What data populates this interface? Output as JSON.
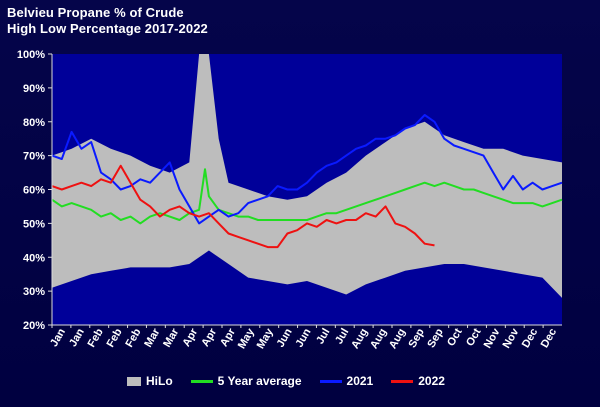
{
  "chart_data": {
    "type": "line",
    "title": "Belvieu Propane % of Crude",
    "subtitle": "High Low Percentage 2017-2022",
    "ylim": [
      20,
      100
    ],
    "yticks": [
      "20%",
      "30%",
      "40%",
      "50%",
      "60%",
      "70%",
      "80%",
      "90%",
      "100%"
    ],
    "x_labels": [
      "Jan",
      "Jan",
      "Feb",
      "Feb",
      "Feb",
      "Mar",
      "Mar",
      "Apr",
      "Apr",
      "Apr",
      "May",
      "May",
      "Jun",
      "Jun",
      "Jul",
      "Jul",
      "Aug",
      "Aug",
      "Aug",
      "Sep",
      "Sep",
      "Oct",
      "Oct",
      "Nov",
      "Nov",
      "Dec",
      "Dec"
    ],
    "x_range": [
      0,
      52
    ],
    "hilo": {
      "name": "HiLo",
      "color": "#bdbdbd",
      "x": [
        0,
        2,
        4,
        6,
        8,
        10,
        12,
        14,
        15,
        16,
        17,
        18,
        20,
        22,
        24,
        26,
        28,
        30,
        32,
        34,
        36,
        38,
        40,
        42,
        44,
        46,
        48,
        50,
        52
      ],
      "high": [
        70,
        72,
        75,
        72,
        70,
        67,
        65,
        68,
        100,
        100,
        75,
        62,
        60,
        58,
        57,
        58,
        62,
        65,
        70,
        74,
        78,
        80,
        76,
        74,
        72,
        72,
        70,
        69,
        68
      ],
      "low": [
        31,
        33,
        35,
        36,
        37,
        37,
        37,
        38,
        40,
        42,
        40,
        38,
        34,
        33,
        32,
        33,
        31,
        29,
        32,
        34,
        36,
        37,
        38,
        38,
        37,
        36,
        35,
        34,
        28
      ]
    },
    "series": [
      {
        "name": "5 Year average",
        "color": "#22dd22",
        "x": [
          0,
          1,
          2,
          3,
          4,
          5,
          6,
          7,
          8,
          9,
          10,
          11,
          12,
          13,
          14,
          15,
          15.6,
          16,
          17,
          18,
          19,
          20,
          21,
          22,
          23,
          24,
          25,
          26,
          27,
          28,
          29,
          30,
          31,
          32,
          33,
          34,
          35,
          36,
          37,
          38,
          39,
          40,
          41,
          42,
          43,
          44,
          45,
          46,
          47,
          48,
          49,
          50,
          51,
          52
        ],
        "values": [
          57,
          55,
          56,
          55,
          54,
          52,
          53,
          51,
          52,
          50,
          52,
          53,
          52,
          51,
          53,
          54,
          66,
          58,
          54,
          53,
          52,
          52,
          51,
          51,
          51,
          51,
          51,
          51,
          52,
          53,
          53,
          54,
          55,
          56,
          57,
          58,
          59,
          60,
          61,
          62,
          61,
          62,
          61,
          60,
          60,
          59,
          58,
          57,
          56,
          56,
          56,
          55,
          56,
          57
        ]
      },
      {
        "name": "2021",
        "color": "#0a1aff",
        "x": [
          0,
          1,
          2,
          3,
          4,
          5,
          6,
          7,
          8,
          9,
          10,
          11,
          12,
          13,
          14,
          15,
          16,
          17,
          18,
          19,
          20,
          21,
          22,
          23,
          24,
          25,
          26,
          27,
          28,
          29,
          30,
          31,
          32,
          33,
          34,
          35,
          36,
          37,
          38,
          39,
          40,
          41,
          42,
          43,
          44,
          45,
          46,
          47,
          48,
          49,
          50,
          51,
          52
        ],
        "values": [
          70,
          69,
          77,
          72,
          74,
          65,
          63,
          60,
          61,
          63,
          62,
          65,
          68,
          60,
          55,
          50,
          52,
          54,
          52,
          53,
          56,
          57,
          58,
          61,
          60,
          60,
          62,
          65,
          67,
          68,
          70,
          72,
          73,
          75,
          75,
          76,
          78,
          79,
          82,
          80,
          75,
          73,
          72,
          71,
          70,
          65,
          60,
          64,
          60,
          62,
          60,
          61,
          62
        ]
      },
      {
        "name": "2022",
        "color": "#ee1111",
        "x": [
          0,
          1,
          2,
          3,
          4,
          5,
          6,
          7,
          8,
          9,
          10,
          11,
          12,
          13,
          14,
          15,
          16,
          17,
          18,
          19,
          20,
          21,
          22,
          23,
          24,
          25,
          26,
          27,
          28,
          29,
          30,
          31,
          32,
          33,
          34,
          35,
          36,
          37,
          38,
          39
        ],
        "values": [
          61,
          60,
          61,
          62,
          61,
          63,
          62,
          67,
          62,
          57,
          55,
          52,
          54,
          55,
          53,
          52,
          53,
          50,
          47,
          46,
          45,
          44,
          43,
          43,
          47,
          48,
          50,
          49,
          51,
          50,
          51,
          51,
          53,
          52,
          55,
          50,
          49,
          47,
          44,
          43.5
        ]
      }
    ],
    "legend": [
      "HiLo",
      "5 Year average",
      "2021",
      "2022"
    ],
    "legend_position": "bottom",
    "plot_bg": "#000099",
    "grid": false
  }
}
